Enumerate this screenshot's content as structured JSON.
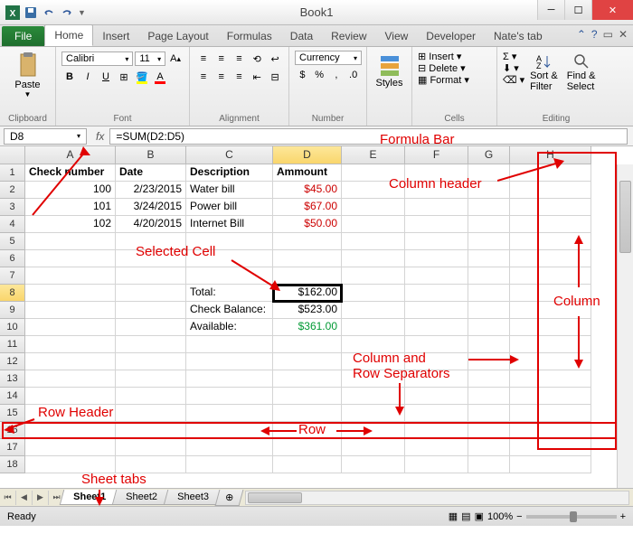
{
  "window": {
    "title": "Book1",
    "qat_icons": [
      "excel",
      "save",
      "undo",
      "redo"
    ]
  },
  "ribbon": {
    "file_label": "File",
    "tabs": [
      "Home",
      "Insert",
      "Page Layout",
      "Formulas",
      "Data",
      "Review",
      "View",
      "Developer",
      "Nate's tab"
    ],
    "active_tab": "Home",
    "groups": {
      "clipboard": {
        "label": "Clipboard",
        "paste": "Paste"
      },
      "font": {
        "label": "Font",
        "font_name": "Calibri",
        "font_size": "11"
      },
      "alignment": {
        "label": "Alignment"
      },
      "number": {
        "label": "Number",
        "format": "Currency"
      },
      "styles": {
        "label": "Styles",
        "styles_btn": "Styles"
      },
      "cells": {
        "label": "Cells",
        "insert": "Insert",
        "delete": "Delete",
        "format": "Format"
      },
      "editing": {
        "label": "Editing",
        "sort": "Sort &\nFilter",
        "find": "Find &\nSelect"
      }
    }
  },
  "formula_bar": {
    "name_box": "D8",
    "formula": "=SUM(D2:D5)"
  },
  "grid": {
    "columns": [
      {
        "letter": "A",
        "width": 100
      },
      {
        "letter": "B",
        "width": 78
      },
      {
        "letter": "C",
        "width": 96
      },
      {
        "letter": "D",
        "width": 76
      },
      {
        "letter": "E",
        "width": 70
      },
      {
        "letter": "F",
        "width": 70
      },
      {
        "letter": "G",
        "width": 46
      },
      {
        "letter": "H",
        "width": 90
      }
    ],
    "row_count": 18,
    "selected_cell": {
      "row": 8,
      "col": "D"
    },
    "header_row": [
      "Check number",
      "Date",
      "Description",
      "Ammount"
    ],
    "data_rows": [
      {
        "check": "100",
        "date": "2/23/2015",
        "desc": "Water bill",
        "amount": "$45.00"
      },
      {
        "check": "101",
        "date": "3/24/2015",
        "desc": "Power bill",
        "amount": "$67.00"
      },
      {
        "check": "102",
        "date": "4/20/2015",
        "desc": "Internet Bill",
        "amount": "$50.00"
      }
    ],
    "summary": {
      "total_label": "Total:",
      "total": "$162.00",
      "balance_label": "Check Balance:",
      "balance": "$523.00",
      "avail_label": "Available:",
      "avail": "$361.00"
    }
  },
  "sheets": {
    "tabs": [
      "Sheet1",
      "Sheet2",
      "Sheet3"
    ],
    "active": "Sheet1"
  },
  "status": {
    "mode": "Ready",
    "zoom": "100%"
  },
  "annotations": {
    "formula_bar": "Formula Bar",
    "column_header": "Column header",
    "selected_cell": "Selected Cell",
    "column": "Column",
    "col_row_sep": "Column and\nRow Separators",
    "row_header": "Row Header",
    "row": "Row",
    "sheet_tabs": "Sheet tabs"
  },
  "colors": {
    "annotation": "#e00000",
    "amount_red": "#cc0000",
    "amount_green": "#009933",
    "highlight": "#f9d66c"
  }
}
